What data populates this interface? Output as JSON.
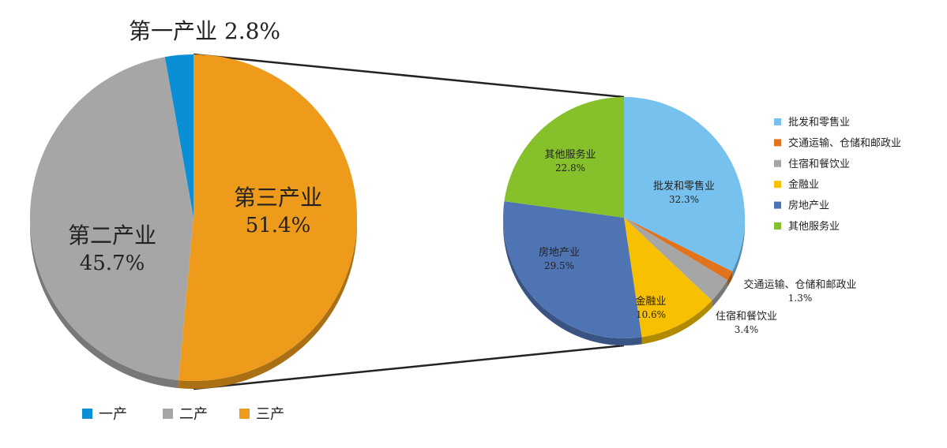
{
  "chart_data": [
    {
      "type": "pie",
      "categories": [
        "第一产业",
        "第二产业",
        "第三产业"
      ],
      "values": [
        2.8,
        45.7,
        51.4
      ],
      "value_labels": [
        "2.8%",
        "45.7%",
        "51.4%"
      ],
      "colors": [
        "#0a8fd6",
        "#a6a6a6",
        "#ee9b1c"
      ],
      "legend": {
        "labels": [
          "一产",
          "二产",
          "三产"
        ],
        "placement": "bottom-left"
      }
    },
    {
      "type": "pie",
      "categories": [
        "批发和零售业",
        "交通运输、仓储和邮政业",
        "住宿和餐饮业",
        "金融业",
        "房地产业",
        "其他服务业"
      ],
      "values": [
        32.3,
        1.3,
        3.4,
        10.6,
        29.5,
        22.8
      ],
      "value_labels": [
        "32.3%",
        "1.3%",
        "3.4%",
        "10.6%",
        "29.5%",
        "22.8%"
      ],
      "colors": [
        "#76c1ee",
        "#e0731c",
        "#a6a6a6",
        "#f7c000",
        "#4f74b4",
        "#86c12c"
      ],
      "legend": {
        "labels": [
          "批发和零售业",
          "交通运输、仓储和邮政业",
          "住宿和餐饮业",
          "金融业",
          "房地产业",
          "其他服务业"
        ],
        "placement": "right"
      }
    }
  ]
}
